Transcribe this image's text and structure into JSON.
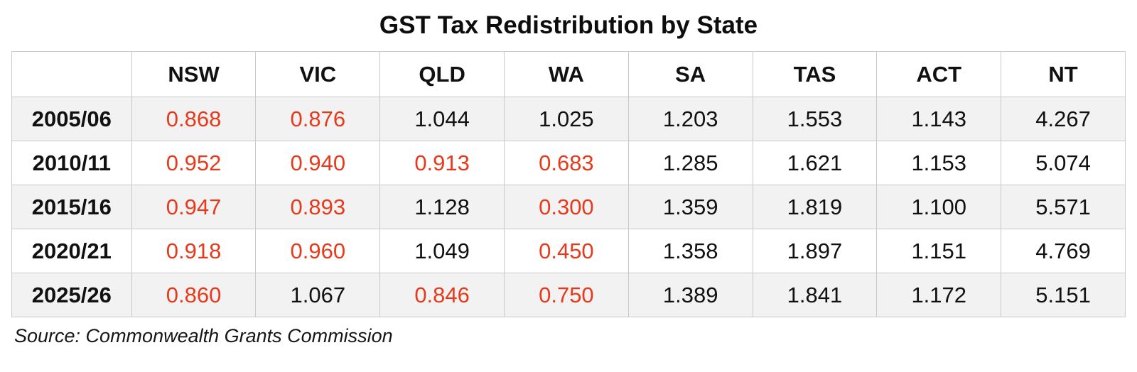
{
  "chart_data": {
    "type": "table",
    "title": "GST Tax Redistribution by State",
    "columns": [
      "NSW",
      "VIC",
      "QLD",
      "WA",
      "SA",
      "TAS",
      "ACT",
      "NT"
    ],
    "rows": [
      {
        "label": "2005/06",
        "values": [
          "0.868",
          "0.876",
          "1.044",
          "1.025",
          "1.203",
          "1.553",
          "1.143",
          "4.267"
        ]
      },
      {
        "label": "2010/11",
        "values": [
          "0.952",
          "0.940",
          "0.913",
          "0.683",
          "1.285",
          "1.621",
          "1.153",
          "5.074"
        ]
      },
      {
        "label": "2015/16",
        "values": [
          "0.947",
          "0.893",
          "1.128",
          "0.300",
          "1.359",
          "1.819",
          "1.100",
          "5.571"
        ]
      },
      {
        "label": "2020/21",
        "values": [
          "0.918",
          "0.960",
          "1.049",
          "0.450",
          "1.358",
          "1.897",
          "1.151",
          "4.769"
        ]
      },
      {
        "label": "2025/26",
        "values": [
          "0.860",
          "1.067",
          "0.846",
          "0.750",
          "1.389",
          "1.841",
          "1.172",
          "5.151"
        ]
      }
    ],
    "highlight_rule": "values below 1.0 rendered in red",
    "source": "Source: Commonwealth Grants Commission",
    "layout": {
      "grid": true,
      "zebra_stripe_rows": "odd",
      "legend_position": "none"
    }
  },
  "colors": {
    "below_one_red": "#e73a1c",
    "stripe_gray": "#f2f2f2",
    "border_gray": "#c9c9c9",
    "text_black": "#111111"
  }
}
